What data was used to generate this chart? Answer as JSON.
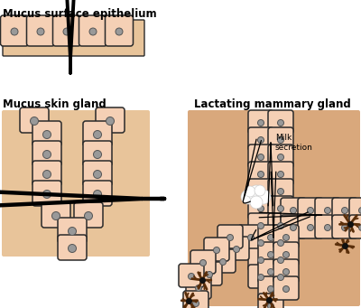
{
  "label_surface": "Mucus surface epithelium",
  "label_skin": "Mucus skin gland",
  "label_mammary": "Lactating mammary gland",
  "label_milk": "Milk\nsecretion",
  "bg_color": "#ffffff",
  "cell_fill": "#f5d0b5",
  "cell_edge": "#2a2a2a",
  "nucleus_fill": "#999999",
  "nucleus_edge": "#555555",
  "box_fill": "#e8c49a",
  "bacteria_color": "#5a2e0a",
  "mammary_bg": "#d9a87c"
}
